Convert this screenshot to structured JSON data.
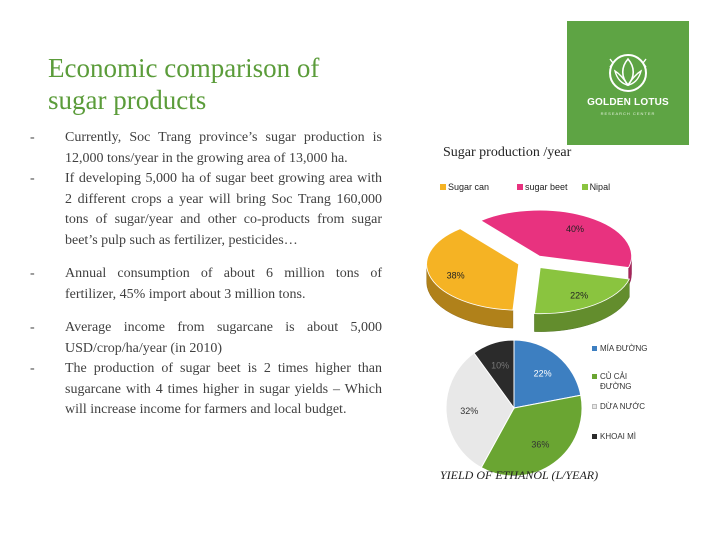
{
  "slide": {
    "title": "Economic comparison of sugar products",
    "bullets": [
      {
        "dash": "-",
        "text": "Currently, Soc Trang province’s sugar production is 12,000 tons/year in the growing area of 13,000 ha."
      },
      {
        "dash": "-",
        "text": "If developing 5,000 ha of sugar beet growing area with 2 different crops a year will bring Soc Trang 160,000 tons of sugar/year and other co-products from sugar beet’s pulp such as fertilizer, pesticides…"
      },
      {
        "dash": "-",
        "text": "Annual consumption of about 6 million tons of fertilizer, 45% import about 3 million tons."
      },
      {
        "dash": "-",
        "text": "Average income from sugarcane is about 5,000 USD/crop/ha/year (in 2010)"
      },
      {
        "dash": "-",
        "text": "The production of sugar beet is 2 times higher than sugarcane with 4 times higher in sugar yields – Which will increase income for farmers and local budget."
      }
    ],
    "logo": {
      "name": "GOLDEN LOTUS",
      "sub": "RESEARCH CENTER",
      "bg_color": "#5ea444",
      "icon": "lotus-emblem-icon"
    },
    "title_color": "#5b9c3a"
  },
  "chart_data": [
    {
      "type": "pie",
      "title": "Sugar production /year",
      "categories": [
        "Sugar can",
        "sugar beet",
        "Nipal"
      ],
      "values": [
        38,
        40,
        22
      ],
      "labels": [
        "38%",
        "40%",
        "22%"
      ],
      "colors": [
        "#f5b324",
        "#e8327f",
        "#8ac43f"
      ],
      "legend_position": "top",
      "style": "3d-exploded"
    },
    {
      "type": "pie",
      "title": "YIELD OF ETHANOL (L/YEAR)",
      "categories": [
        "MÍA ĐƯỜNG",
        "CỦ CẢI ĐƯỜNG",
        "DỪA NƯỚC",
        "KHOAI MÌ"
      ],
      "values": [
        22,
        36,
        32,
        10
      ],
      "labels": [
        "22%",
        "36%",
        "32%",
        "10%"
      ],
      "colors": [
        "#3d7fc1",
        "#6aa532",
        "#e8e8e8",
        "#2b2b2b"
      ],
      "legend_position": "right"
    }
  ]
}
